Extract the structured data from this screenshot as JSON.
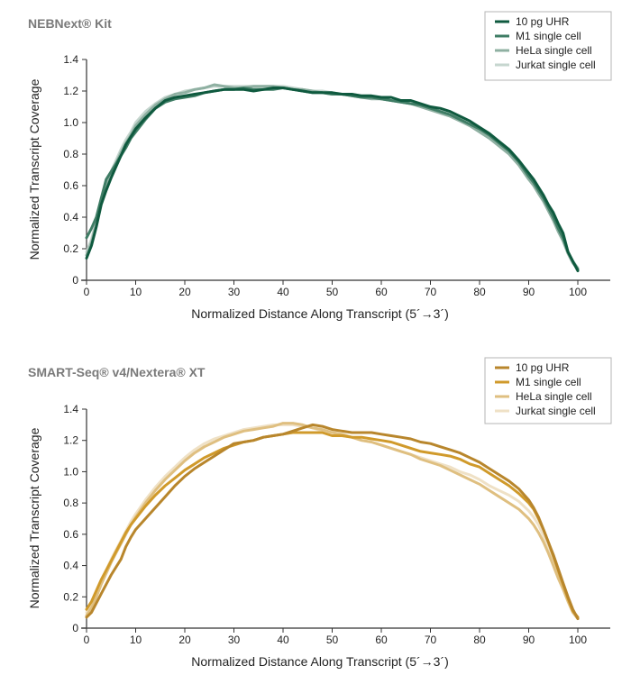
{
  "chart_data": [
    {
      "type": "line",
      "title": "NEBNext® Kit",
      "xlabel": "Normalized Distance Along Transcript (5´→3´)",
      "ylabel": "Normalized Transcript Coverage",
      "xlim": [
        0,
        100
      ],
      "ylim": [
        0,
        1.4
      ],
      "xticks": [
        "0",
        "10",
        "20",
        "30",
        "40",
        "50",
        "60",
        "70",
        "80",
        "90",
        "100"
      ],
      "yticks": [
        "0",
        "0.2",
        "0.4",
        "0.6",
        "0.8",
        "1.0",
        "1.2",
        "1.4"
      ],
      "grid": false,
      "legend_position": "top-right",
      "x": [
        0,
        1,
        2,
        3,
        4,
        5,
        6,
        7,
        8,
        9,
        10,
        12,
        14,
        16,
        18,
        20,
        22,
        24,
        26,
        28,
        30,
        32,
        34,
        36,
        38,
        40,
        42,
        44,
        46,
        48,
        50,
        52,
        54,
        56,
        58,
        60,
        62,
        64,
        66,
        68,
        70,
        72,
        74,
        76,
        78,
        80,
        82,
        84,
        86,
        88,
        90,
        91,
        92,
        93,
        94,
        95,
        96,
        97,
        98,
        99,
        100
      ],
      "series": [
        {
          "name": "10 pg UHR",
          "color": "#0f5a3f",
          "values": [
            0.14,
            0.22,
            0.34,
            0.48,
            0.57,
            0.65,
            0.72,
            0.79,
            0.86,
            0.91,
            0.96,
            1.03,
            1.09,
            1.14,
            1.16,
            1.17,
            1.18,
            1.19,
            1.2,
            1.21,
            1.21,
            1.21,
            1.2,
            1.21,
            1.22,
            1.22,
            1.21,
            1.2,
            1.19,
            1.19,
            1.19,
            1.18,
            1.18,
            1.17,
            1.17,
            1.16,
            1.16,
            1.14,
            1.14,
            1.12,
            1.1,
            1.09,
            1.07,
            1.04,
            1.01,
            0.97,
            0.93,
            0.88,
            0.83,
            0.76,
            0.68,
            0.64,
            0.59,
            0.54,
            0.48,
            0.43,
            0.36,
            0.3,
            0.18,
            0.12,
            0.06
          ]
        },
        {
          "name": "M1 single cell",
          "color": "#3f7d65",
          "values": [
            0.27,
            0.33,
            0.4,
            0.52,
            0.64,
            0.69,
            0.74,
            0.79,
            0.84,
            0.9,
            0.94,
            1.02,
            1.09,
            1.13,
            1.15,
            1.16,
            1.17,
            1.19,
            1.2,
            1.21,
            1.21,
            1.22,
            1.21,
            1.21,
            1.21,
            1.22,
            1.21,
            1.2,
            1.19,
            1.19,
            1.18,
            1.18,
            1.17,
            1.16,
            1.16,
            1.15,
            1.14,
            1.13,
            1.12,
            1.11,
            1.09,
            1.07,
            1.05,
            1.02,
            0.99,
            0.96,
            0.92,
            0.87,
            0.82,
            0.75,
            0.66,
            0.62,
            0.57,
            0.52,
            0.46,
            0.4,
            0.33,
            0.27,
            0.18,
            0.12,
            0.07
          ]
        },
        {
          "name": "HeLa single cell",
          "color": "#8fb0a2",
          "values": [
            0.16,
            0.24,
            0.36,
            0.5,
            0.59,
            0.67,
            0.74,
            0.81,
            0.87,
            0.92,
            0.98,
            1.05,
            1.11,
            1.15,
            1.18,
            1.19,
            1.21,
            1.22,
            1.24,
            1.23,
            1.22,
            1.22,
            1.23,
            1.23,
            1.23,
            1.22,
            1.21,
            1.21,
            1.2,
            1.19,
            1.18,
            1.18,
            1.17,
            1.16,
            1.15,
            1.15,
            1.14,
            1.13,
            1.12,
            1.1,
            1.08,
            1.06,
            1.04,
            1.01,
            0.98,
            0.94,
            0.9,
            0.85,
            0.8,
            0.73,
            0.64,
            0.6,
            0.55,
            0.5,
            0.44,
            0.38,
            0.31,
            0.25,
            0.17,
            0.11,
            0.07
          ]
        },
        {
          "name": "Jurkat single cell",
          "color": "#c6d6cf",
          "values": [
            0.18,
            0.26,
            0.38,
            0.52,
            0.61,
            0.69,
            0.76,
            0.83,
            0.89,
            0.94,
            1.0,
            1.07,
            1.12,
            1.16,
            1.18,
            1.2,
            1.21,
            1.22,
            1.23,
            1.23,
            1.23,
            1.23,
            1.23,
            1.23,
            1.23,
            1.23,
            1.22,
            1.21,
            1.2,
            1.2,
            1.19,
            1.18,
            1.18,
            1.17,
            1.16,
            1.15,
            1.14,
            1.13,
            1.12,
            1.1,
            1.08,
            1.06,
            1.04,
            1.01,
            0.98,
            0.95,
            0.91,
            0.86,
            0.81,
            0.74,
            0.65,
            0.61,
            0.56,
            0.51,
            0.45,
            0.39,
            0.32,
            0.26,
            0.18,
            0.12,
            0.08
          ]
        }
      ]
    },
    {
      "type": "line",
      "title": "SMART-Seq® v4/Nextera® XT",
      "xlabel": "Normalized Distance Along Transcript (5´→3´)",
      "ylabel": "Normalized Transcript Coverage",
      "xlim": [
        0,
        100
      ],
      "ylim": [
        0,
        1.4
      ],
      "xticks": [
        "0",
        "10",
        "20",
        "30",
        "40",
        "50",
        "60",
        "70",
        "80",
        "90",
        "100"
      ],
      "yticks": [
        "0",
        "0.2",
        "0.4",
        "0.6",
        "0.8",
        "1.0",
        "1.2",
        "1.4"
      ],
      "grid": false,
      "legend_position": "top-right",
      "x": [
        0,
        1,
        2,
        3,
        4,
        5,
        6,
        7,
        8,
        9,
        10,
        12,
        14,
        16,
        18,
        20,
        22,
        24,
        26,
        28,
        30,
        32,
        34,
        36,
        38,
        40,
        42,
        44,
        46,
        48,
        50,
        52,
        54,
        56,
        58,
        60,
        62,
        64,
        66,
        68,
        70,
        72,
        74,
        76,
        78,
        80,
        82,
        84,
        86,
        88,
        90,
        91,
        92,
        93,
        94,
        95,
        96,
        97,
        98,
        99,
        100
      ],
      "series": [
        {
          "name": "10 pg UHR",
          "color": "#b8862c",
          "values": [
            0.07,
            0.1,
            0.16,
            0.22,
            0.28,
            0.34,
            0.39,
            0.44,
            0.52,
            0.58,
            0.63,
            0.7,
            0.77,
            0.84,
            0.91,
            0.97,
            1.02,
            1.06,
            1.1,
            1.14,
            1.18,
            1.19,
            1.2,
            1.22,
            1.23,
            1.24,
            1.26,
            1.28,
            1.3,
            1.29,
            1.27,
            1.26,
            1.25,
            1.25,
            1.25,
            1.24,
            1.23,
            1.22,
            1.21,
            1.19,
            1.18,
            1.16,
            1.14,
            1.12,
            1.09,
            1.06,
            1.02,
            0.98,
            0.94,
            0.89,
            0.82,
            0.77,
            0.71,
            0.63,
            0.55,
            0.47,
            0.38,
            0.29,
            0.2,
            0.12,
            0.06
          ]
        },
        {
          "name": "M1 single cell",
          "color": "#d09a2b",
          "values": [
            0.12,
            0.17,
            0.24,
            0.31,
            0.37,
            0.43,
            0.49,
            0.55,
            0.61,
            0.66,
            0.7,
            0.78,
            0.85,
            0.91,
            0.96,
            1.01,
            1.05,
            1.09,
            1.12,
            1.15,
            1.17,
            1.19,
            1.2,
            1.22,
            1.23,
            1.24,
            1.25,
            1.25,
            1.25,
            1.25,
            1.23,
            1.23,
            1.22,
            1.22,
            1.21,
            1.2,
            1.19,
            1.17,
            1.15,
            1.13,
            1.12,
            1.11,
            1.1,
            1.08,
            1.05,
            1.03,
            0.99,
            0.95,
            0.91,
            0.86,
            0.8,
            0.76,
            0.7,
            0.63,
            0.55,
            0.46,
            0.37,
            0.28,
            0.19,
            0.11,
            0.07
          ]
        },
        {
          "name": "HeLa single cell",
          "color": "#dfbf80",
          "values": [
            0.08,
            0.13,
            0.2,
            0.28,
            0.35,
            0.42,
            0.48,
            0.54,
            0.6,
            0.66,
            0.71,
            0.8,
            0.88,
            0.95,
            1.01,
            1.07,
            1.12,
            1.16,
            1.19,
            1.22,
            1.24,
            1.26,
            1.27,
            1.28,
            1.29,
            1.31,
            1.31,
            1.3,
            1.28,
            1.27,
            1.25,
            1.24,
            1.22,
            1.2,
            1.19,
            1.17,
            1.15,
            1.13,
            1.11,
            1.08,
            1.06,
            1.04,
            1.01,
            0.98,
            0.95,
            0.92,
            0.88,
            0.84,
            0.8,
            0.76,
            0.7,
            0.66,
            0.61,
            0.55,
            0.48,
            0.4,
            0.32,
            0.25,
            0.17,
            0.1,
            0.06
          ]
        },
        {
          "name": "Jurkat single cell",
          "color": "#efe1c6",
          "values": [
            0.1,
            0.15,
            0.22,
            0.3,
            0.37,
            0.44,
            0.5,
            0.56,
            0.62,
            0.68,
            0.73,
            0.82,
            0.9,
            0.97,
            1.03,
            1.09,
            1.14,
            1.18,
            1.21,
            1.23,
            1.25,
            1.27,
            1.28,
            1.29,
            1.3,
            1.3,
            1.3,
            1.29,
            1.28,
            1.26,
            1.25,
            1.23,
            1.22,
            1.2,
            1.19,
            1.17,
            1.15,
            1.13,
            1.11,
            1.09,
            1.07,
            1.05,
            1.03,
            1.0,
            0.98,
            0.95,
            0.91,
            0.88,
            0.85,
            0.81,
            0.75,
            0.71,
            0.66,
            0.59,
            0.51,
            0.43,
            0.34,
            0.26,
            0.18,
            0.11,
            0.07
          ]
        }
      ]
    }
  ]
}
